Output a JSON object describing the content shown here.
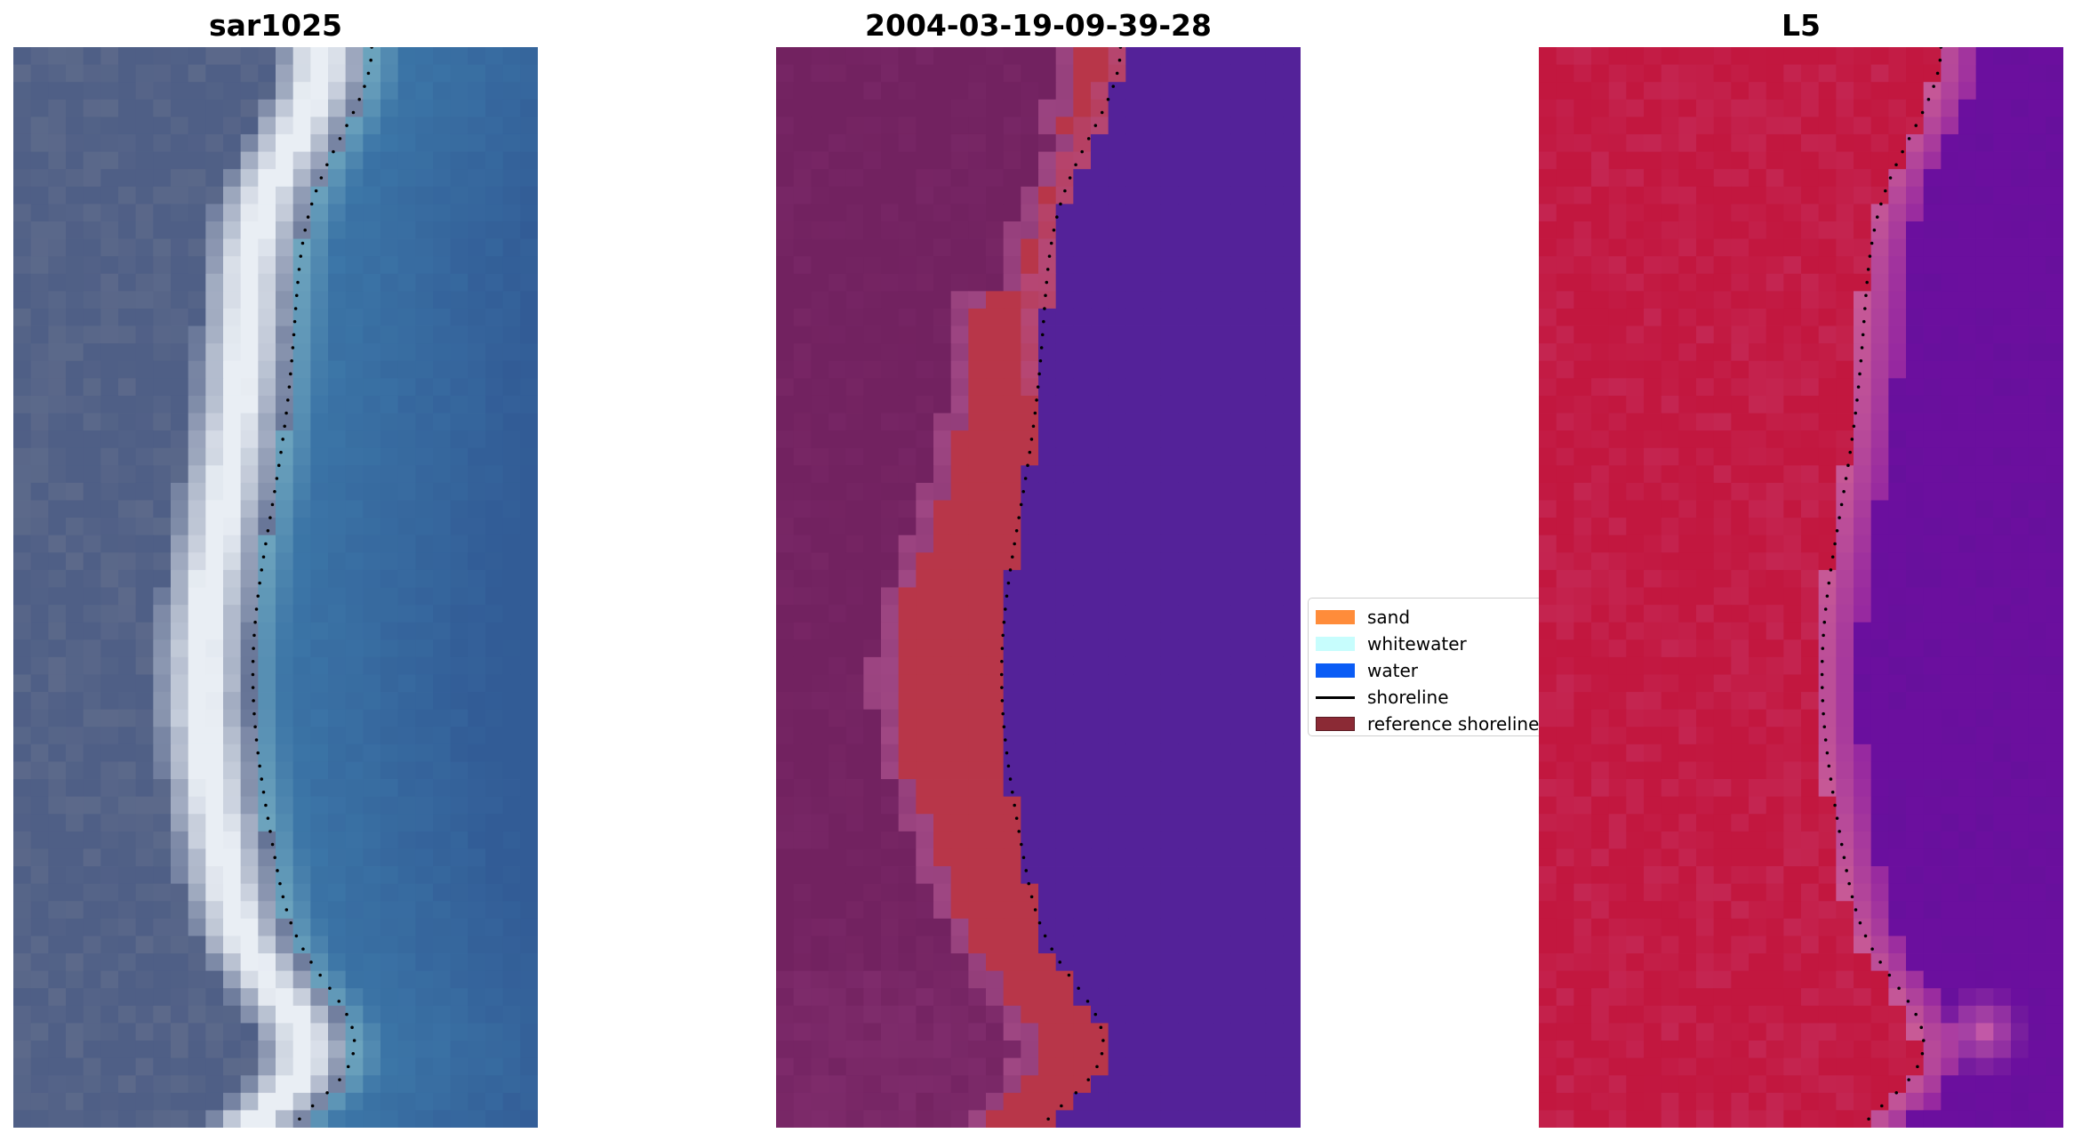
{
  "panels": [
    {
      "title": "sar1025"
    },
    {
      "title": "2004-03-19-09-39-28"
    },
    {
      "title": "L5"
    }
  ],
  "legend": {
    "items": [
      {
        "label": "sand",
        "color": "#ff8c3a",
        "kind": "patch"
      },
      {
        "label": "whitewater",
        "color": "#c7fdfd",
        "kind": "patch"
      },
      {
        "label": "water",
        "color": "#0a5cf5",
        "kind": "patch"
      },
      {
        "label": "shoreline",
        "color": "#000000",
        "kind": "line"
      },
      {
        "label": "reference shoreline",
        "color": "#8b2a35",
        "kind": "patch"
      }
    ]
  },
  "colors": {
    "rgb_land": "#4f5f86",
    "rgb_water": "#3b74a6",
    "rgb_surf": "#e9eef4",
    "class_land": "#722260",
    "class_sand_overlay": "#b83649",
    "class_water": "#542299",
    "ndwi_land": "#c2173f",
    "ndwi_water": "#6b0f9e",
    "shoreline_dots": "#000000"
  }
}
